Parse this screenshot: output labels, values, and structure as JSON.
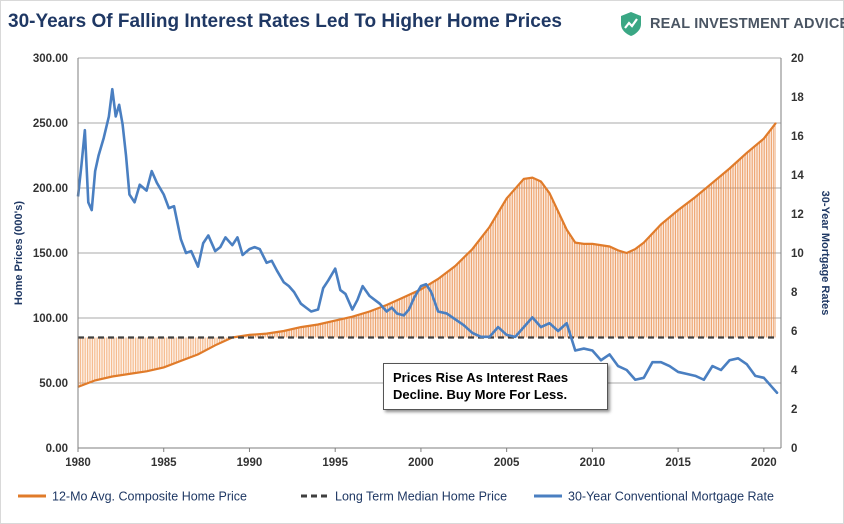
{
  "title": "30-Years Of Falling Interest Rates Led To Higher Home Prices",
  "brand": {
    "name": "REAL INVESTMENT ADVICE",
    "logo_icon": "shield-icon",
    "logo_color": "#3aa784"
  },
  "annotation": {
    "line1": "Prices Rise As Interest Raes",
    "line2": "Decline.  Buy More For Less."
  },
  "chart_data": {
    "type": "area",
    "x_ticks": [
      "1980",
      "1985",
      "1990",
      "1995",
      "2000",
      "2005",
      "2010",
      "2015",
      "2020"
    ],
    "xlim": [
      1980,
      2021
    ],
    "left_axis": {
      "label": "Home Prices (000's)",
      "ylim": [
        0,
        300
      ],
      "ticks": [
        "0.00",
        "50.00",
        "100.00",
        "150.00",
        "200.00",
        "250.00",
        "300.00"
      ]
    },
    "right_axis": {
      "label": "30-Year Mortgage Rates",
      "ylim": [
        0,
        20
      ],
      "ticks": [
        "0",
        "2",
        "4",
        "6",
        "8",
        "10",
        "12",
        "14",
        "16",
        "18",
        "20"
      ]
    },
    "grid": true,
    "legend_position": "bottom",
    "series": [
      {
        "name": "12-Mo Avg. Composite Home Price",
        "axis": "left",
        "color": "#e07b2a",
        "x": [
          1980,
          1981,
          1982,
          1983,
          1984,
          1985,
          1986,
          1987,
          1988,
          1989,
          1990,
          1991,
          1992,
          1993,
          1994,
          1995,
          1996,
          1997,
          1998,
          1999,
          2000,
          2001,
          2002,
          2003,
          2004,
          2005,
          2006,
          2006.5,
          2007,
          2007.5,
          2008,
          2008.5,
          2009,
          2009.5,
          2010,
          2011,
          2011.5,
          2012,
          2012.5,
          2013,
          2014,
          2015,
          2016,
          2017,
          2018,
          2019,
          2020,
          2020.7
        ],
        "values": [
          47,
          52,
          55,
          57,
          59,
          62,
          67,
          72,
          79,
          85,
          87,
          88,
          90,
          93,
          95,
          98,
          101,
          105,
          110,
          116,
          122,
          130,
          140,
          153,
          170,
          192,
          207,
          208,
          205,
          196,
          182,
          168,
          158,
          157,
          157,
          155,
          152,
          150,
          153,
          158,
          172,
          183,
          193,
          204,
          215,
          227,
          238,
          250
        ]
      },
      {
        "name": "Long Term Median Home Price",
        "axis": "left",
        "color": "#404040",
        "x": [
          1980,
          2020.7
        ],
        "values": [
          85,
          85
        ]
      },
      {
        "name": "30-Year Conventional Mortgage Rate",
        "axis": "right",
        "color": "#4a7fc1",
        "x": [
          1980,
          1980.2,
          1980.4,
          1980.6,
          1980.8,
          1981,
          1981.2,
          1981.5,
          1981.8,
          1982,
          1982.2,
          1982.4,
          1982.6,
          1982.8,
          1983,
          1983.3,
          1983.6,
          1984,
          1984.3,
          1984.6,
          1985,
          1985.3,
          1985.6,
          1986,
          1986.3,
          1986.6,
          1987,
          1987.3,
          1987.6,
          1988,
          1988.3,
          1988.6,
          1989,
          1989.3,
          1989.6,
          1990,
          1990.3,
          1990.6,
          1991,
          1991.3,
          1991.6,
          1992,
          1992.3,
          1992.6,
          1993,
          1993.3,
          1993.6,
          1994,
          1994.3,
          1994.6,
          1995,
          1995.3,
          1995.6,
          1996,
          1996.3,
          1996.6,
          1997,
          1997.3,
          1997.6,
          1998,
          1998.3,
          1998.6,
          1999,
          1999.3,
          1999.6,
          2000,
          2000.3,
          2000.6,
          2001,
          2001.5,
          2002,
          2002.5,
          2003,
          2003.5,
          2004,
          2004.5,
          2005,
          2005.5,
          2006,
          2006.5,
          2007,
          2007.5,
          2008,
          2008.5,
          2009,
          2009.5,
          2010,
          2010.5,
          2011,
          2011.5,
          2012,
          2012.5,
          2013,
          2013.5,
          2014,
          2014.5,
          2015,
          2015.5,
          2016,
          2016.5,
          2017,
          2017.5,
          2018,
          2018.5,
          2019,
          2019.5,
          2020,
          2020.5,
          2020.8
        ],
        "values": [
          12.9,
          14.5,
          16.3,
          12.6,
          12.2,
          14.2,
          15.0,
          15.9,
          17.0,
          18.4,
          17.0,
          17.6,
          16.6,
          15.0,
          13.0,
          12.6,
          13.5,
          13.2,
          14.2,
          13.6,
          13.0,
          12.3,
          12.4,
          10.7,
          10.0,
          10.1,
          9.3,
          10.5,
          10.9,
          10.1,
          10.3,
          10.8,
          10.4,
          10.8,
          9.9,
          10.2,
          10.3,
          10.2,
          9.5,
          9.6,
          9.1,
          8.5,
          8.3,
          8.0,
          7.4,
          7.2,
          7.0,
          7.1,
          8.2,
          8.6,
          9.2,
          8.1,
          7.9,
          7.1,
          7.6,
          8.3,
          7.8,
          7.6,
          7.4,
          7.0,
          7.2,
          6.9,
          6.8,
          7.1,
          7.7,
          8.3,
          8.4,
          8.0,
          7.0,
          6.9,
          6.6,
          6.3,
          5.9,
          5.7,
          5.7,
          6.2,
          5.8,
          5.7,
          6.2,
          6.7,
          6.2,
          6.4,
          6.0,
          6.4,
          5.0,
          5.1,
          5.0,
          4.5,
          4.8,
          4.2,
          4.0,
          3.5,
          3.6,
          4.4,
          4.4,
          4.2,
          3.9,
          3.8,
          3.7,
          3.5,
          4.2,
          4.0,
          4.5,
          4.6,
          4.3,
          3.7,
          3.6,
          3.1,
          2.8
        ]
      }
    ]
  }
}
